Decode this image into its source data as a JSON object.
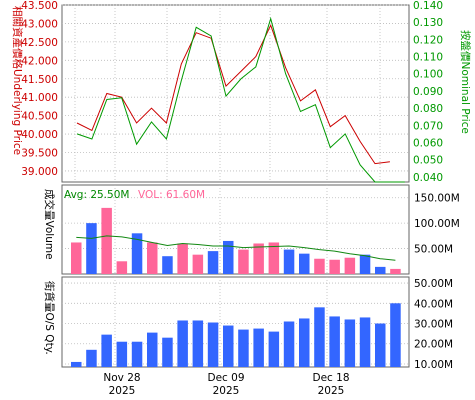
{
  "chart_data": [
    {
      "type": "line",
      "x": [
        "2025-11-24",
        "2025-11-25",
        "2025-11-26",
        "2025-11-27",
        "2025-11-28",
        "2025-12-01",
        "2025-12-02",
        "2025-12-03",
        "2025-12-04",
        "2025-12-05",
        "2025-12-08",
        "2025-12-09",
        "2025-12-10",
        "2025-12-11",
        "2025-12-12",
        "2025-12-15",
        "2025-12-16",
        "2025-12-17",
        "2025-12-18",
        "2025-12-19",
        "2025-12-22",
        "2025-12-23",
        "2025-12-24"
      ],
      "ylabel_left": "相關資產價格Underlying Price",
      "ylabel_right": "按盤價Nominal Price",
      "ylim_left": [
        38.7,
        43.5
      ],
      "ylim_right": [
        0.037,
        0.14
      ],
      "yticks_left": [
        "43.500",
        "43.000",
        "42.500",
        "42.000",
        "41.500",
        "41.000",
        "40.500",
        "40.000",
        "39.500",
        "39.000"
      ],
      "yticks_right": [
        "0.140",
        "0.130",
        "0.120",
        "0.110",
        "0.100",
        "0.090",
        "0.080",
        "0.070",
        "0.060",
        "0.050",
        "0.040"
      ],
      "series": [
        {
          "axis": "left",
          "color": "#cc0000",
          "values": [
            40.3,
            40.1,
            41.1,
            41.0,
            40.3,
            40.7,
            40.3,
            41.9,
            42.75,
            42.6,
            41.3,
            41.7,
            42.1,
            42.95,
            41.8,
            40.9,
            41.2,
            40.2,
            40.5,
            39.8,
            39.2,
            39.25,
            null
          ]
        },
        {
          "axis": "right",
          "color": "#009900",
          "values": [
            0.065,
            0.062,
            0.085,
            0.086,
            0.059,
            0.072,
            0.062,
            0.096,
            0.127,
            0.122,
            0.087,
            0.097,
            0.104,
            0.132,
            0.1,
            0.078,
            0.082,
            0.057,
            0.065,
            0.047,
            0.037,
            0.037,
            0.037
          ]
        }
      ]
    },
    {
      "type": "bar",
      "legend": [
        {
          "text": "Avg: 25.50M",
          "color": "#008800"
        },
        {
          "text": "VOL: 61.60M",
          "color": "#ff6699"
        }
      ],
      "ylabel_left": "成交量Volume",
      "yticks_right": [
        "150.00M",
        "100.00M",
        "50.00M"
      ],
      "ylim": [
        0,
        175
      ],
      "values": [
        62,
        100,
        130,
        25,
        80,
        62,
        35,
        60,
        38,
        45,
        65,
        48,
        60,
        62,
        48,
        40,
        30,
        28,
        32,
        38,
        14,
        10
      ],
      "colors": [
        "#ff6699",
        "#3366ff",
        "#ff6699",
        "#ff6699",
        "#3366ff",
        "#ff6699",
        "#3366ff",
        "#ff6699",
        "#ff6699",
        "#3366ff",
        "#3366ff",
        "#ff6699",
        "#ff6699",
        "#ff6699",
        "#3366ff",
        "#3366ff",
        "#ff6699",
        "#ff6699",
        "#ff6699",
        "#3366ff",
        "#3366ff",
        "#ff6699"
      ],
      "avg_line": [
        72,
        70,
        75,
        73,
        68,
        62,
        56,
        60,
        58,
        55,
        55,
        52,
        53,
        54,
        55,
        52,
        48,
        45,
        40,
        36,
        30,
        27
      ]
    },
    {
      "type": "bar",
      "ylabel_left": "街貨量O/S Qty.",
      "yticks_right": [
        "50.00M",
        "40.00M",
        "30.00M",
        "20.00M",
        "10.00M"
      ],
      "ylim": [
        8.5,
        53
      ],
      "values": [
        11,
        17,
        24.5,
        21,
        21,
        25.5,
        23,
        31.5,
        31.5,
        30.5,
        29,
        27,
        27.5,
        26,
        31,
        32.5,
        38,
        33.5,
        32,
        33,
        30,
        40
      ],
      "color": "#3366ff"
    }
  ],
  "x_axis": {
    "ticks": [
      {
        "day": "Nov 28",
        "year": "2025"
      },
      {
        "day": "Dec 09",
        "year": "2025"
      },
      {
        "day": "Dec 18",
        "year": "2025"
      }
    ]
  }
}
